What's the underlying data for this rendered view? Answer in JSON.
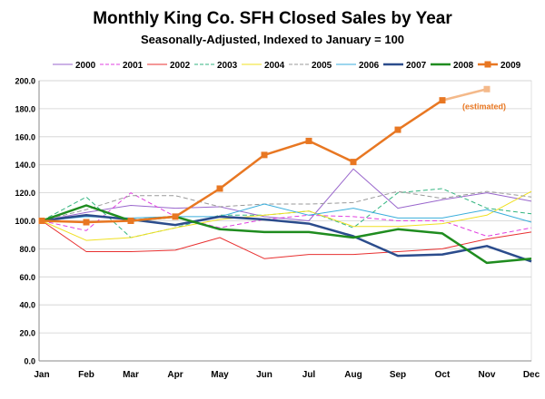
{
  "chart_data": {
    "type": "line",
    "title": "Monthly King Co. SFH Closed Sales by Year",
    "subtitle": "Seasonally-Adjusted, Indexed to January = 100",
    "xlabel": "",
    "ylabel": "",
    "ylim": [
      0,
      200
    ],
    "yticks": [
      0,
      20,
      40,
      60,
      80,
      100,
      120,
      140,
      160,
      180,
      200
    ],
    "ytick_labels": [
      "0.0",
      "20.0",
      "40.0",
      "60.0",
      "80.0",
      "100.0",
      "120.0",
      "140.0",
      "160.0",
      "180.0",
      "200.0"
    ],
    "categories": [
      "Jan",
      "Feb",
      "Mar",
      "Apr",
      "May",
      "Jun",
      "Jul",
      "Aug",
      "Sep",
      "Oct",
      "Nov",
      "Dec"
    ],
    "grid": "horizontal",
    "legend_position": "top",
    "annotation": {
      "text": "(estimated)",
      "color": "#e87722"
    },
    "series": [
      {
        "name": "2000",
        "color": "#9966cc",
        "dash": "solid",
        "width": 1,
        "marker": "none",
        "values": [
          100,
          106,
          111,
          109,
          110,
          103,
          100,
          137,
          109,
          115,
          120,
          114
        ]
      },
      {
        "name": "2001",
        "color": "#e040e0",
        "dash": "dash",
        "width": 1,
        "marker": "none",
        "values": [
          100,
          93,
          120,
          103,
          95,
          101,
          104,
          103,
          100,
          100,
          89,
          95
        ]
      },
      {
        "name": "2002",
        "color": "#e83030",
        "dash": "solid",
        "width": 1,
        "marker": "none",
        "values": [
          100,
          78,
          78,
          79,
          88,
          73,
          76,
          76,
          78,
          80,
          87,
          92
        ]
      },
      {
        "name": "2003",
        "color": "#33b580",
        "dash": "dash",
        "width": 1,
        "marker": "none",
        "values": [
          100,
          117,
          88,
          95,
          104,
          104,
          107,
          95,
          120,
          123,
          109,
          105
        ]
      },
      {
        "name": "2004",
        "color": "#f0e020",
        "dash": "solid",
        "width": 1,
        "marker": "none",
        "values": [
          100,
          86,
          88,
          95,
          101,
          104,
          107,
          96,
          96,
          98,
          104,
          121
        ]
      },
      {
        "name": "2005",
        "color": "#999999",
        "dash": "dash",
        "width": 1,
        "marker": "none",
        "values": [
          100,
          108,
          118,
          118,
          110,
          112,
          112,
          113,
          121,
          116,
          121,
          117
        ]
      },
      {
        "name": "2006",
        "color": "#3aaedc",
        "dash": "solid",
        "width": 1,
        "marker": "none",
        "values": [
          100,
          103,
          102,
          103,
          103,
          112,
          104,
          109,
          102,
          102,
          108,
          99
        ]
      },
      {
        "name": "2007",
        "color": "#2b4c8c",
        "dash": "solid",
        "width": 2.5,
        "marker": "none",
        "values": [
          100,
          104,
          101,
          97,
          103,
          101,
          98,
          89,
          75,
          76,
          82,
          71
        ]
      },
      {
        "name": "2008",
        "color": "#1f8c1f",
        "dash": "solid",
        "width": 2.5,
        "marker": "none",
        "values": [
          100,
          111,
          100,
          103,
          94,
          92,
          92,
          88,
          94,
          91,
          70,
          73
        ]
      },
      {
        "name": "2009",
        "color": "#e87722",
        "dash": "solid",
        "width": 2.5,
        "marker": "square",
        "values": [
          100,
          99,
          100,
          103,
          123,
          147,
          157,
          142,
          165,
          186,
          194,
          null
        ],
        "estimated_from_index": 10,
        "estimated_color": "#f4b98a"
      }
    ]
  }
}
